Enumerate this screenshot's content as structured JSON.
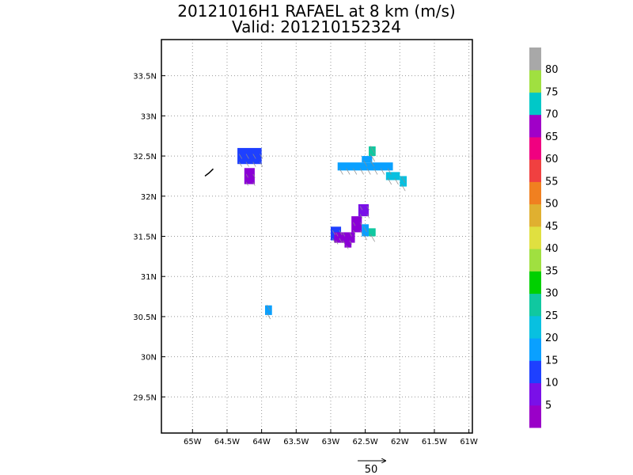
{
  "title": "20121016H1 RAFAEL at 8 km (m/s)",
  "subtitle": "Valid: 201210152324",
  "map": {
    "lon_range": [
      -65.45,
      -60.95
    ],
    "lat_range": [
      29.05,
      33.95
    ],
    "lon_ticks": [
      {
        "value": -65.0,
        "label": "65W"
      },
      {
        "value": -64.5,
        "label": "64.5W"
      },
      {
        "value": -64.0,
        "label": "64W"
      },
      {
        "value": -63.5,
        "label": "63.5W"
      },
      {
        "value": -63.0,
        "label": "63W"
      },
      {
        "value": -62.5,
        "label": "62.5W"
      },
      {
        "value": -62.0,
        "label": "62W"
      },
      {
        "value": -61.5,
        "label": "61.5W"
      },
      {
        "value": -61.0,
        "label": "61W"
      }
    ],
    "lat_ticks": [
      {
        "value": 29.5,
        "label": "29.5N"
      },
      {
        "value": 30.0,
        "label": "30N"
      },
      {
        "value": 30.5,
        "label": "30.5N"
      },
      {
        "value": 31.0,
        "label": "31N"
      },
      {
        "value": 31.5,
        "label": "31.5N"
      },
      {
        "value": 32.0,
        "label": "32N"
      },
      {
        "value": 32.5,
        "label": "32.5N"
      },
      {
        "value": 33.0,
        "label": "33N"
      },
      {
        "value": 33.5,
        "label": "33.5N"
      }
    ],
    "grid": true,
    "cell_deg": 0.05,
    "patches": [
      {
        "lon": [
          -64.35,
          -64.0
        ],
        "lat": [
          32.4,
          32.6
        ],
        "speed": 12,
        "color": "#1e40ff"
      },
      {
        "lon": [
          -64.25,
          -64.1
        ],
        "lat": [
          32.15,
          32.35
        ],
        "speed": 5,
        "color": "#8a00d6"
      },
      {
        "lon": [
          -62.9,
          -62.1
        ],
        "lat": [
          32.32,
          32.42
        ],
        "speed": 20,
        "color": "#0aa0ff"
      },
      {
        "lon": [
          -62.55,
          -62.4
        ],
        "lat": [
          32.42,
          32.5
        ],
        "speed": 20,
        "color": "#0aa0ff"
      },
      {
        "lon": [
          -62.45,
          -62.35
        ],
        "lat": [
          32.5,
          32.62
        ],
        "speed": 28,
        "color": "#10c8a0"
      },
      {
        "lon": [
          -62.2,
          -62.0
        ],
        "lat": [
          32.2,
          32.3
        ],
        "speed": 22,
        "color": "#08c0e0"
      },
      {
        "lon": [
          -62.0,
          -61.9
        ],
        "lat": [
          32.12,
          32.25
        ],
        "speed": 22,
        "color": "#08c0e0"
      },
      {
        "lon": [
          -63.0,
          -62.85
        ],
        "lat": [
          31.45,
          31.62
        ],
        "speed": 12,
        "color": "#1e40ff"
      },
      {
        "lon": [
          -62.95,
          -62.65
        ],
        "lat": [
          31.42,
          31.55
        ],
        "speed": 5,
        "color": "#8a00d6"
      },
      {
        "lon": [
          -62.8,
          -62.7
        ],
        "lat": [
          31.36,
          31.45
        ],
        "speed": 5,
        "color": "#8a00d6"
      },
      {
        "lon": [
          -62.7,
          -62.55
        ],
        "lat": [
          31.55,
          31.75
        ],
        "speed": 5,
        "color": "#8a00d6"
      },
      {
        "lon": [
          -62.6,
          -62.45
        ],
        "lat": [
          31.75,
          31.9
        ],
        "speed": 7,
        "color": "#7a10e8"
      },
      {
        "lon": [
          -62.55,
          -62.45
        ],
        "lat": [
          31.5,
          31.65
        ],
        "speed": 18,
        "color": "#0aa0ff"
      },
      {
        "lon": [
          -62.45,
          -62.35
        ],
        "lat": [
          31.5,
          31.6
        ],
        "speed": 28,
        "color": "#10c8a0"
      },
      {
        "lon": [
          -63.95,
          -63.85
        ],
        "lat": [
          30.52,
          30.64
        ],
        "speed": 20,
        "color": "#0aa0ff"
      }
    ],
    "coastline": [
      [
        -64.82,
        32.25
      ],
      [
        -64.76,
        32.29
      ],
      [
        -64.7,
        32.34
      ]
    ]
  },
  "colorbar": {
    "colors": [
      "#9a00c8",
      "#7a10e8",
      "#1e40ff",
      "#0aa0ff",
      "#08c0e0",
      "#10c8a0",
      "#00d000",
      "#a0e040",
      "#e0e040",
      "#e0b030",
      "#f08020",
      "#f04040",
      "#f00080",
      "#a000c8",
      "#00c8c8",
      "#a0e040",
      "#a8a8a8"
    ],
    "labels": [
      "5",
      "10",
      "15",
      "20",
      "25",
      "30",
      "35",
      "40",
      "45",
      "50",
      "55",
      "60",
      "65",
      "70",
      "75",
      "80"
    ]
  },
  "scale": {
    "label": "50"
  }
}
